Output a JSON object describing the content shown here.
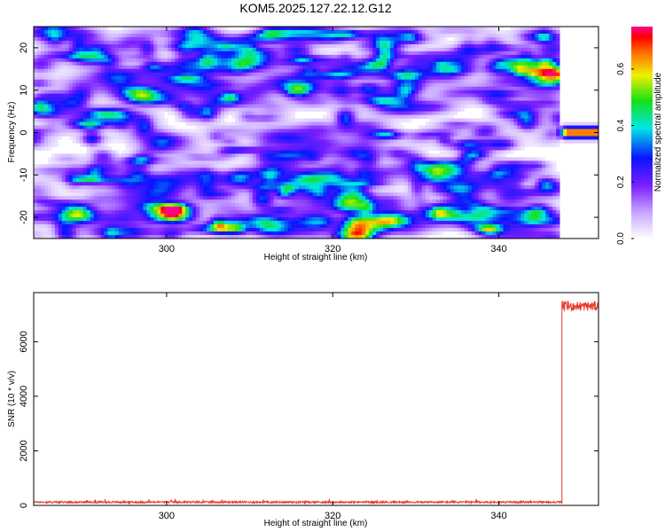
{
  "figure": {
    "title": "KOM5.2025.127.22.12.G12"
  },
  "chart_data": [
    {
      "type": "heatmap",
      "title": "KOM5.2025.127.22.12.G12",
      "xlabel": "Height of straight line (km)",
      "ylabel": "Frequency (Hz)",
      "xlim": [
        284,
        352
      ],
      "ylim": [
        -25,
        25
      ],
      "x_ticks": [
        300,
        320,
        340
      ],
      "y_ticks": [
        -20,
        -10,
        0,
        10,
        20
      ],
      "x_tick_labels": [
        "300",
        "320",
        "340"
      ],
      "y_tick_labels": [
        "-20",
        "-10",
        "0",
        "10",
        "20"
      ],
      "colorbar": {
        "label": "Normalized spectral amplitude",
        "range": [
          0,
          0.75
        ],
        "ticks": [
          0.0,
          0.2,
          0.4,
          0.6
        ],
        "tick_labels": [
          "0.0",
          "0.2",
          "0.4",
          "0.6"
        ],
        "colormap": "rainbow (white-purple-blue-cyan-green-yellow-red-magenta)"
      },
      "noise_level": 0.1,
      "noise_region_x": [
        284,
        347.5
      ],
      "peak": {
        "x_start": 347.5,
        "x_end": 352,
        "frequency": 0,
        "amplitude": 0.72
      },
      "grid": false
    },
    {
      "type": "line",
      "xlabel": "Height of straight line (km)",
      "ylabel": "SNR (10 * v/v)",
      "xlim": [
        284,
        352
      ],
      "ylim": [
        0,
        7800
      ],
      "x_ticks": [
        300,
        320,
        340
      ],
      "y_ticks": [
        0,
        2000,
        4000,
        6000
      ],
      "x_tick_labels": [
        "300",
        "320",
        "340"
      ],
      "y_tick_labels": [
        "0",
        "2000",
        "4000",
        "6000"
      ],
      "series": [
        {
          "color": "#e8382f",
          "segments": [
            {
              "x_range": [
                284,
                347.6
              ],
              "baseline": 120,
              "noise": 35
            },
            {
              "x_range": [
                347.6,
                352
              ],
              "baseline": 7300,
              "noise": 180
            }
          ]
        }
      ],
      "grid": false
    }
  ]
}
